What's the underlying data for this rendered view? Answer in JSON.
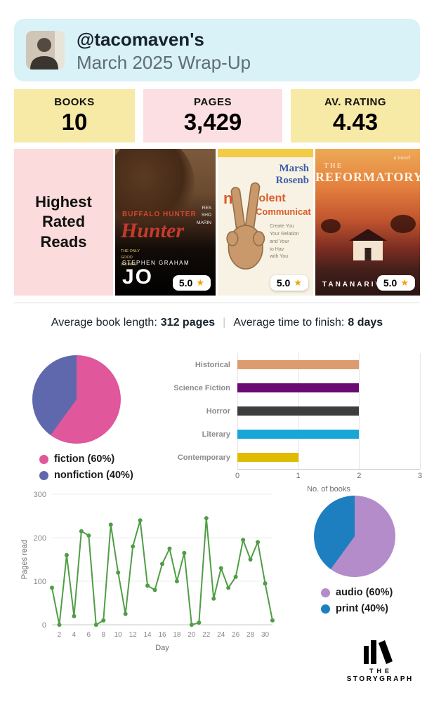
{
  "header": {
    "handle": "@tacomaven's",
    "subtitle": "March 2025 Wrap-Up"
  },
  "stats": [
    {
      "label": "BOOKS",
      "value": "10"
    },
    {
      "label": "PAGES",
      "value": "3,429"
    },
    {
      "label": "AV. RATING",
      "value": "4.43"
    }
  ],
  "highest_rated": {
    "title": "Highest Rated Reads",
    "books": [
      {
        "rating": "5.0",
        "title_small": "BUFFALO HUNTER",
        "title_script": "Hunter",
        "side_text": "RES\nSHO\nMARIN",
        "left_text": "THE ONLY GOOD INDIANS",
        "author": "STEPHEN GRAHAM",
        "author_big": "JO"
      },
      {
        "rating": "5.0",
        "author_line1": "Marsh",
        "author_line2": "Rosenb",
        "title_n": "n",
        "title_frag": "iolent",
        "title_frag2": "Communicat",
        "subtitle": "Create You\nYour Relation\nand Your\nto Hav\nwith You"
      },
      {
        "rating": "5.0",
        "tag": "a novel",
        "the": "THE",
        "title": "REFORMATORY",
        "author": "TANANARIV"
      }
    ]
  },
  "averages": {
    "length_label": "Average book length:",
    "length_value": "312 pages",
    "separator": "|",
    "finish_label": "Average time to finish:",
    "finish_value": "8 days"
  },
  "icons": {
    "star": "★"
  },
  "chart_data": [
    {
      "type": "pie",
      "name": "fiction-split",
      "labels": [
        "fiction (60%)",
        "nonfiction (40%)"
      ],
      "values": [
        60,
        40
      ],
      "colors": [
        "#e0579b",
        "#5f68ad"
      ],
      "legend_position": "bottom-left"
    },
    {
      "type": "bar",
      "name": "genres",
      "orientation": "horizontal",
      "categories": [
        "Historical",
        "Science Fiction",
        "Horror",
        "Literary",
        "Contemporary"
      ],
      "values": [
        2,
        2,
        2,
        2,
        1
      ],
      "colors": [
        "#dd9c6f",
        "#6a0a72",
        "#3d3d3d",
        "#18a6d6",
        "#e0bc00"
      ],
      "xlabel": "No. of books",
      "xlim": [
        0,
        3
      ],
      "xticks": [
        0,
        1,
        2,
        3
      ],
      "grid": true
    },
    {
      "type": "line",
      "name": "pages-per-day",
      "x": [
        1,
        2,
        3,
        4,
        5,
        6,
        7,
        8,
        9,
        10,
        11,
        12,
        13,
        14,
        15,
        16,
        17,
        18,
        19,
        20,
        21,
        22,
        23,
        24,
        25,
        26,
        27,
        28,
        29,
        30,
        31
      ],
      "values": [
        85,
        0,
        160,
        20,
        215,
        205,
        0,
        10,
        230,
        120,
        25,
        180,
        240,
        90,
        80,
        140,
        175,
        100,
        165,
        0,
        5,
        245,
        60,
        130,
        85,
        110,
        195,
        150,
        190,
        95,
        10
      ],
      "color": "#4f9d45",
      "xlabel": "Day",
      "ylabel": "Pages read",
      "ylim": [
        0,
        300
      ],
      "yticks": [
        0,
        100,
        200,
        300
      ],
      "xticks": [
        2,
        4,
        6,
        8,
        10,
        12,
        14,
        16,
        18,
        20,
        22,
        24,
        26,
        28,
        30
      ],
      "grid": true
    },
    {
      "type": "pie",
      "name": "format-split",
      "labels": [
        "audio (60%)",
        "print (40%)"
      ],
      "values": [
        60,
        40
      ],
      "colors": [
        "#b48cca",
        "#1d7fc0"
      ],
      "legend_position": "bottom"
    }
  ],
  "footer": {
    "line1": "THE",
    "line2": "STORYGRAPH"
  }
}
